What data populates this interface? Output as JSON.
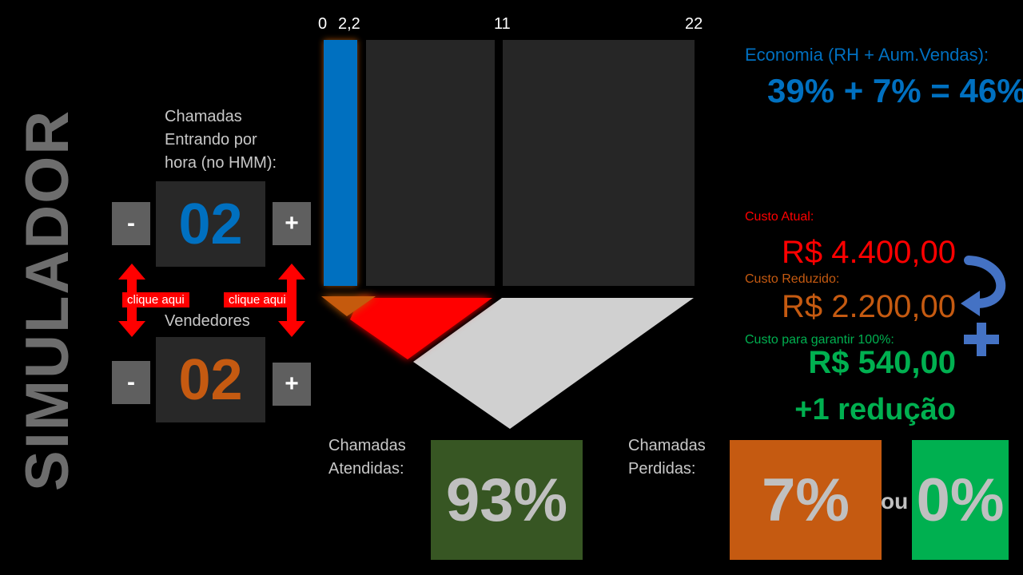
{
  "title": "SIMULADOR",
  "calls": {
    "label_lines": [
      "Chamadas",
      "Entrando por",
      "hora (no HMM):"
    ],
    "value": "02",
    "minus": "-",
    "plus": "+"
  },
  "sellers": {
    "label": "Vendedores",
    "value": "02",
    "minus": "-",
    "plus": "+"
  },
  "hints": {
    "left": "clique aqui",
    "right": "clique aqui"
  },
  "axis_ticks": [
    "0",
    "2,2",
    "11",
    "22"
  ],
  "colors": {
    "blue": "#0070c0",
    "orange": "#c55a11",
    "red": "#ff0000",
    "green": "#00b050",
    "dark_green": "#375623"
  },
  "savings": {
    "label": "Economia (RH + Aum.Vendas):",
    "value": "39% + 7% = 46%"
  },
  "cost_current": {
    "label": "Custo Atual:",
    "value": "R$ 4.400,00"
  },
  "cost_reduced": {
    "label": "Custo Reduzido:",
    "value": "R$ 2.200,00"
  },
  "cost_guarantee": {
    "label": "Custo para garantir 100%:",
    "value": "R$ 540,00"
  },
  "extra_reduction": "+1 redução",
  "answered": {
    "label_lines": [
      "Chamadas",
      "Atendidas:"
    ],
    "value": "93%"
  },
  "lost": {
    "label_lines": [
      "Chamadas",
      "Perdidas:"
    ],
    "value": "7%",
    "or": "ou",
    "alt_value": "0%"
  },
  "icons": {
    "curved_arrow": "curved-arrow-icon",
    "plus": "plus-icon"
  }
}
